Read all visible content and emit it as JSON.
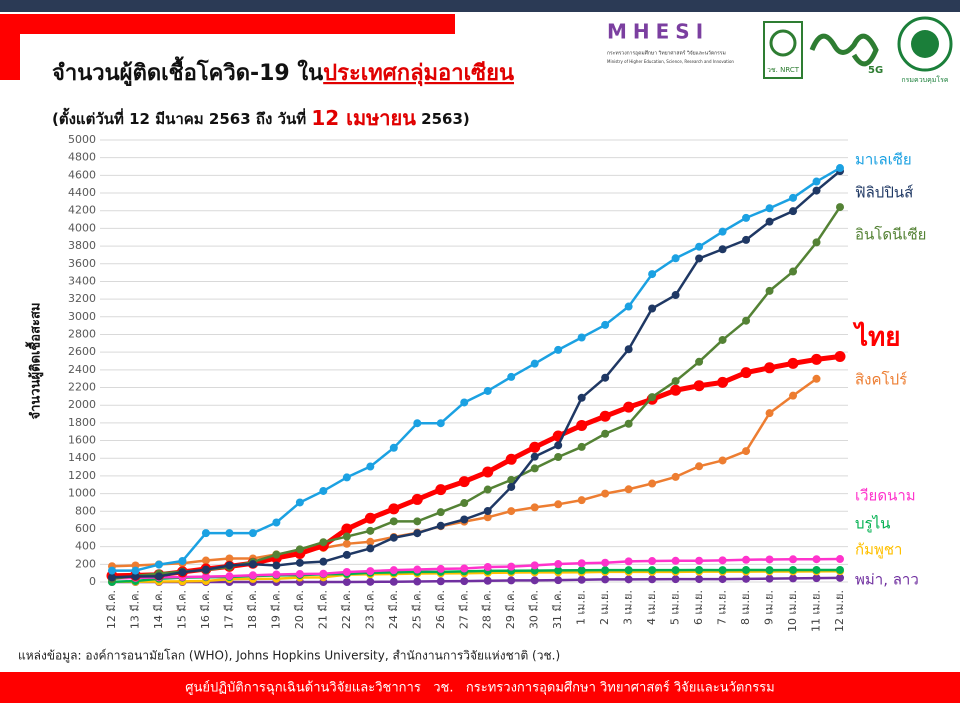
{
  "header": {
    "title": [
      "จำนวนผู้ติดเชื้อโควิด-19 ใน",
      "ประเทศกลุ่มอาเซียน"
    ],
    "subtitle": [
      "(ตั้งแต่วันที่ 12 มีนาคม 2563 ถึง วันที่ ",
      "12 เมษายน",
      " 2563)"
    ],
    "logos": [
      "MHESI",
      "กระทรวงการอุดมศึกษา วิทยาศาสตร์ วิจัยและนวัตกรรม",
      "Ministry of Higher Education, Science, Research and Innovation",
      "วช. NRCT",
      "5G",
      "กรมควบคุมโรค"
    ]
  },
  "chart_data": {
    "type": "line",
    "y_label": "จำนวนผู้ติดเชื้อสะสม",
    "categories": [
      "12 มี.ค.",
      "13 มี.ค.",
      "14 มี.ค.",
      "15 มี.ค.",
      "16 มี.ค.",
      "17 มี.ค.",
      "18 มี.ค.",
      "19 มี.ค.",
      "20 มี.ค.",
      "21 มี.ค.",
      "22 มี.ค.",
      "23 มี.ค.",
      "24 มี.ค.",
      "25 มี.ค.",
      "26 มี.ค.",
      "27 มี.ค.",
      "28 มี.ค.",
      "29 มี.ค.",
      "30 มี.ค.",
      "31 มี.ค.",
      "1 เม.ย.",
      "2 เม.ย.",
      "3 เม.ย.",
      "4 เม.ย.",
      "5 เม.ย.",
      "6 เม.ย.",
      "7 เม.ย.",
      "8 เม.ย.",
      "9 เม.ย.",
      "10 เม.ย.",
      "11 เม.ย.",
      "12 เม.ย."
    ],
    "ylim": [
      0,
      5000
    ],
    "yticks": [
      0,
      200,
      400,
      600,
      800,
      1000,
      1200,
      1400,
      1600,
      1800,
      2000,
      2200,
      2400,
      2600,
      2800,
      3000,
      3200,
      3400,
      3600,
      3800,
      4000,
      4200,
      4400,
      4600,
      4800,
      5000
    ],
    "grid": true,
    "series": [
      {
        "name": "มาเลเซีย",
        "color": "#1ba1e2",
        "values": [
          129,
          129,
          197,
          238,
          553,
          553,
          553,
          673,
          900,
          1030,
          1183,
          1306,
          1518,
          1796,
          1796,
          2031,
          2161,
          2320,
          2470,
          2626,
          2766,
          2908,
          3116,
          3483,
          3662,
          3793,
          3963,
          4119,
          4228,
          4346,
          4530,
          4683
        ]
      },
      {
        "name": "ฟิลิปปินส์",
        "color": "#1f3864",
        "values": [
          52,
          64,
          64,
          111,
          140,
          187,
          202,
          187,
          217,
          230,
          307,
          380,
          501,
          552,
          636,
          707,
          803,
          1075,
          1418,
          1546,
          2084,
          2311,
          2633,
          3094,
          3246,
          3660,
          3764,
          3870,
          4076,
          4195,
          4428,
          4648
        ]
      },
      {
        "name": "อินโดนีเซีย",
        "color": "#548235",
        "values": [
          34,
          69,
          96,
          117,
          134,
          172,
          227,
          309,
          369,
          450,
          514,
          579,
          686,
          686,
          790,
          893,
          1046,
          1155,
          1285,
          1414,
          1528,
          1677,
          1790,
          2092,
          2273,
          2491,
          2738,
          2956,
          3293,
          3512,
          3842,
          4241
        ]
      },
      {
        "name": "ไทย",
        "color": "#ff0000",
        "values": [
          70,
          75,
          82,
          114,
          147,
          177,
          212,
          272,
          322,
          411,
          599,
          721,
          827,
          934,
          1045,
          1136,
          1245,
          1388,
          1524,
          1651,
          1771,
          1875,
          1978,
          2067,
          2169,
          2220,
          2258,
          2369,
          2423,
          2473,
          2518,
          2551
        ]
      },
      {
        "name": "สิงคโปร์",
        "color": "#ed7d31",
        "values": [
          178,
          187,
          200,
          212,
          243,
          266,
          266,
          313,
          345,
          385,
          432,
          455,
          509,
          558,
          631,
          683,
          732,
          802,
          844,
          879,
          926,
          1000,
          1049,
          1114,
          1189,
          1309,
          1375,
          1481,
          1910,
          2108,
          2299,
          null
        ]
      },
      {
        "name": "เวียดนาม",
        "color": "#ff33cc",
        "values": [
          39,
          47,
          53,
          56,
          61,
          66,
          76,
          85,
          91,
          94,
          113,
          123,
          134,
          141,
          148,
          153,
          169,
          174,
          188,
          203,
          212,
          218,
          233,
          237,
          240,
          241,
          245,
          251,
          255,
          257,
          258,
          260
        ]
      },
      {
        "name": "บรูไน",
        "color": "#00b050",
        "values": [
          1,
          11,
          37,
          50,
          54,
          56,
          68,
          75,
          78,
          88,
          91,
          104,
          109,
          114,
          115,
          120,
          126,
          127,
          129,
          131,
          133,
          134,
          135,
          135,
          135,
          136,
          135,
          136,
          135,
          136,
          136,
          136
        ]
      },
      {
        "name": "กัมพูชา",
        "color": "#ffc000",
        "values": [
          3,
          3,
          5,
          7,
          12,
          33,
          35,
          37,
          51,
          53,
          84,
          87,
          91,
          96,
          98,
          99,
          103,
          107,
          109,
          109,
          110,
          114,
          114,
          114,
          115,
          117,
          117,
          117,
          119,
          119,
          120,
          122
        ]
      },
      {
        "name": "พม่า, ลาว",
        "color": "#7030a0",
        "values": [
          0,
          0,
          0,
          0,
          0,
          0,
          0,
          0,
          0,
          0,
          0,
          2,
          3,
          5,
          8,
          10,
          14,
          18,
          19,
          21,
          25,
          29,
          30,
          31,
          32,
          33,
          33,
          36,
          38,
          41,
          44,
          47
        ]
      }
    ]
  },
  "source": "แหล่งข้อมูล: องค์การอนามัยโลก (WHO), Johns Hopkins University, สำนักงานการวิจัยแห่งชาติ (วช.)",
  "footer": "ศูนย์ปฏิบัติการฉุกเฉินด้านวิจัยและวิชาการ   วช.   กระทรวงการอุดมศึกษา วิทยาศาสตร์ วิจัยและนวัตกรรม"
}
